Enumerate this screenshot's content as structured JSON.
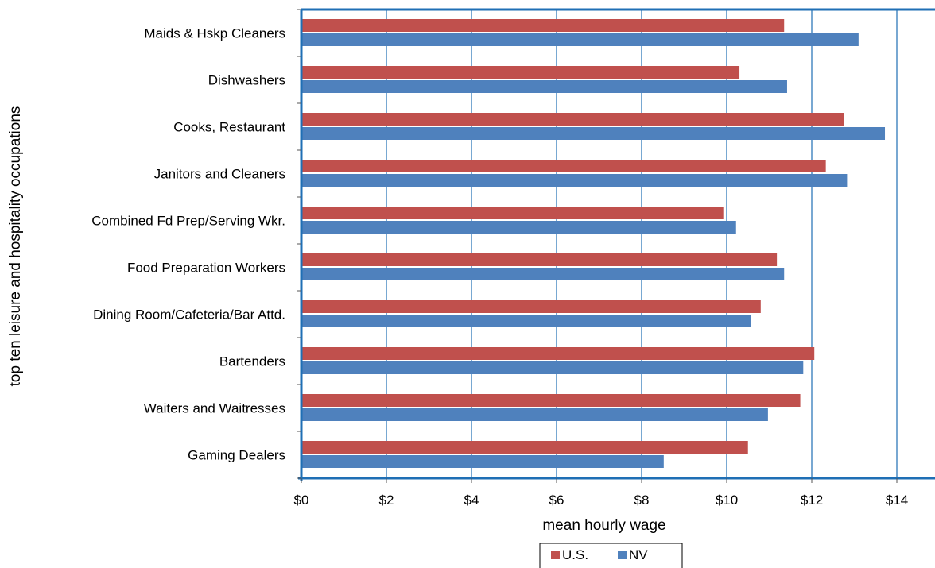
{
  "chart_data": {
    "type": "bar",
    "orientation": "horizontal",
    "categories": [
      "Maids & Hskp Cleaners",
      "Dishwashers",
      "Cooks, Restaurant",
      "Janitors and Cleaners",
      "Combined Fd Prep/Serving Wkr.",
      "Food Preparation Workers",
      "Dining Room/Cafeteria/Bar Attd.",
      "Bartenders",
      "Waiters and Waitresses",
      "Gaming Dealers"
    ],
    "series": [
      {
        "name": "U.S.",
        "color": "#c0504d",
        "values": [
          11.35,
          10.3,
          12.75,
          12.33,
          9.92,
          11.18,
          10.8,
          12.06,
          11.73,
          10.5
        ]
      },
      {
        "name": "NV",
        "color": "#4f81bd",
        "values": [
          13.1,
          11.42,
          13.72,
          12.83,
          10.22,
          11.35,
          10.57,
          11.8,
          10.97,
          8.52
        ]
      }
    ],
    "xlabel": "mean hourly wage",
    "ylabel": "top ten leisure and hospitality occupations",
    "xlim": [
      0,
      15
    ],
    "xticks": [
      0,
      2,
      4,
      6,
      8,
      10,
      12,
      14
    ],
    "xtick_labels": [
      "$0",
      "$2",
      "$4",
      "$6",
      "$8",
      "$10",
      "$12",
      "$14"
    ],
    "grid": "vertical",
    "axis_color": "#1f6fb5",
    "legend_position": "bottom-center"
  }
}
